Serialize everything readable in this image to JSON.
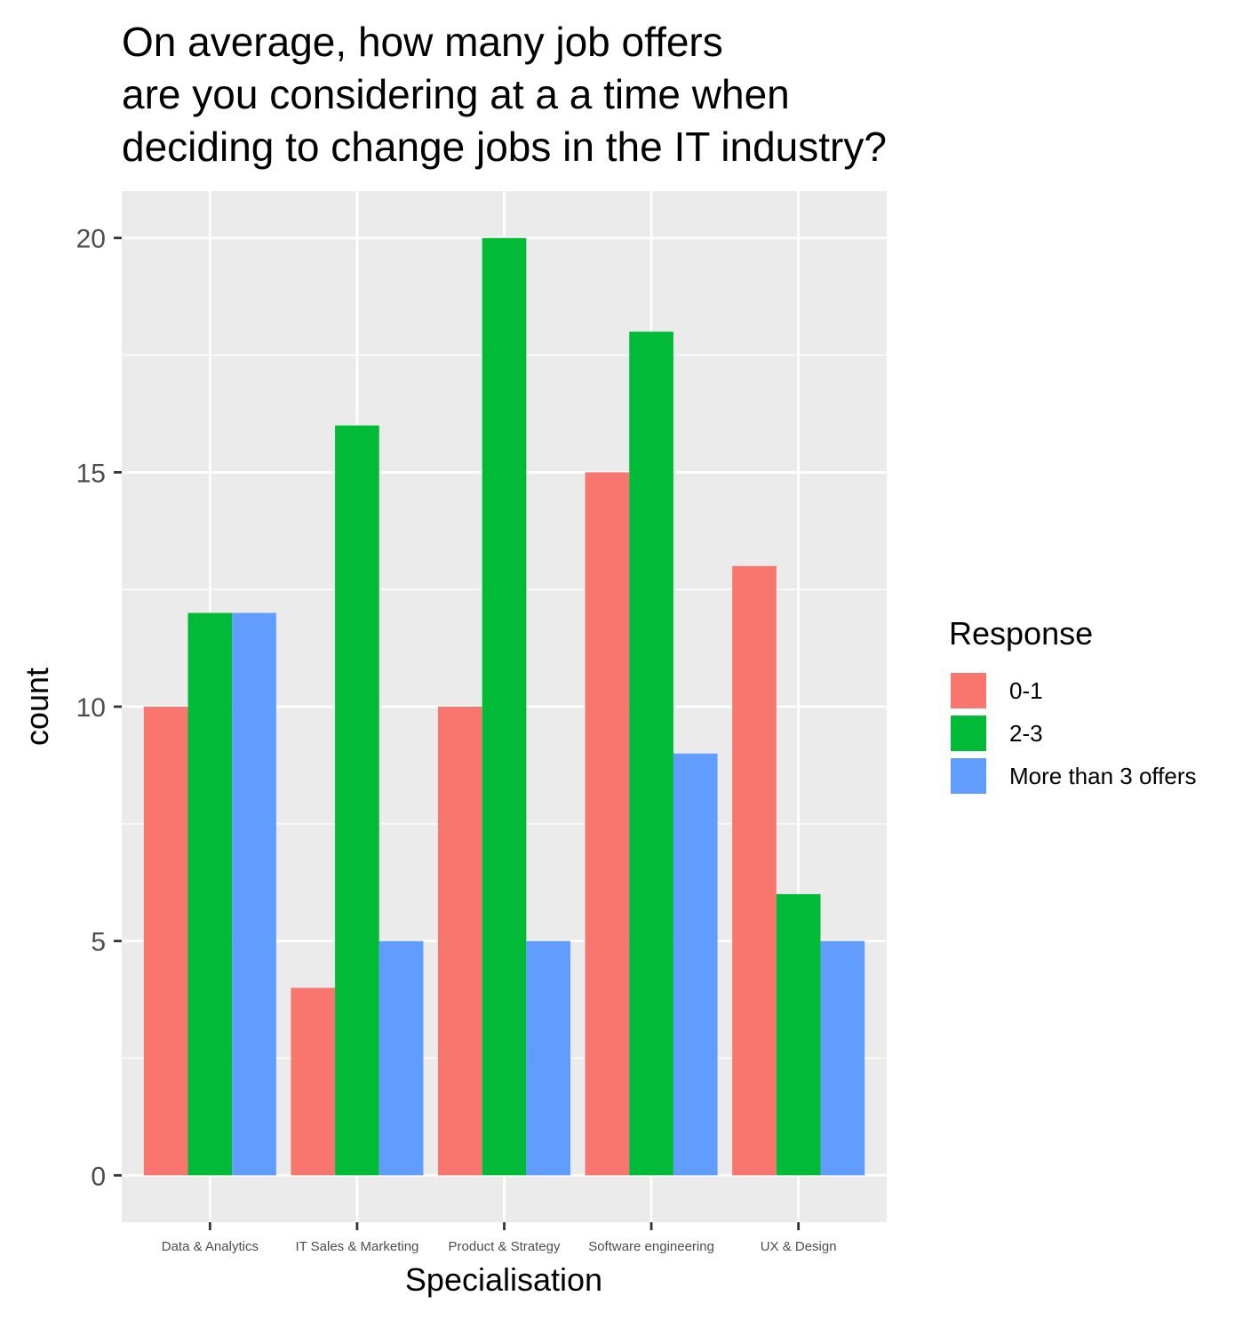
{
  "chart_data": {
    "type": "bar",
    "title_lines": [
      "On average, how many job offers",
      "are you considering at a a time when",
      "deciding to change jobs in the IT industry?"
    ],
    "xlabel": "Specialisation",
    "ylabel": "count",
    "categories": [
      "Data & Analytics",
      "IT Sales & Marketing",
      "Product & Strategy",
      "Software engineering",
      "UX & Design"
    ],
    "series": [
      {
        "name": "0-1",
        "color": "#F8766D",
        "values": [
          10,
          4,
          10,
          15,
          13
        ]
      },
      {
        "name": "2-3",
        "color": "#00BA38",
        "values": [
          12,
          16,
          20,
          18,
          6
        ]
      },
      {
        "name": "More than 3 offers",
        "color": "#619CFF",
        "values": [
          12,
          5,
          5,
          9,
          5
        ]
      }
    ],
    "ylim": [
      -1,
      21
    ],
    "yticks": [
      0,
      5,
      10,
      15,
      20
    ],
    "ytick_labels": [
      "0",
      "5",
      "10",
      "15",
      "20"
    ],
    "grid": true,
    "legend": {
      "title": "Response",
      "position": "right"
    },
    "panel_color": "#EBEBEB"
  }
}
